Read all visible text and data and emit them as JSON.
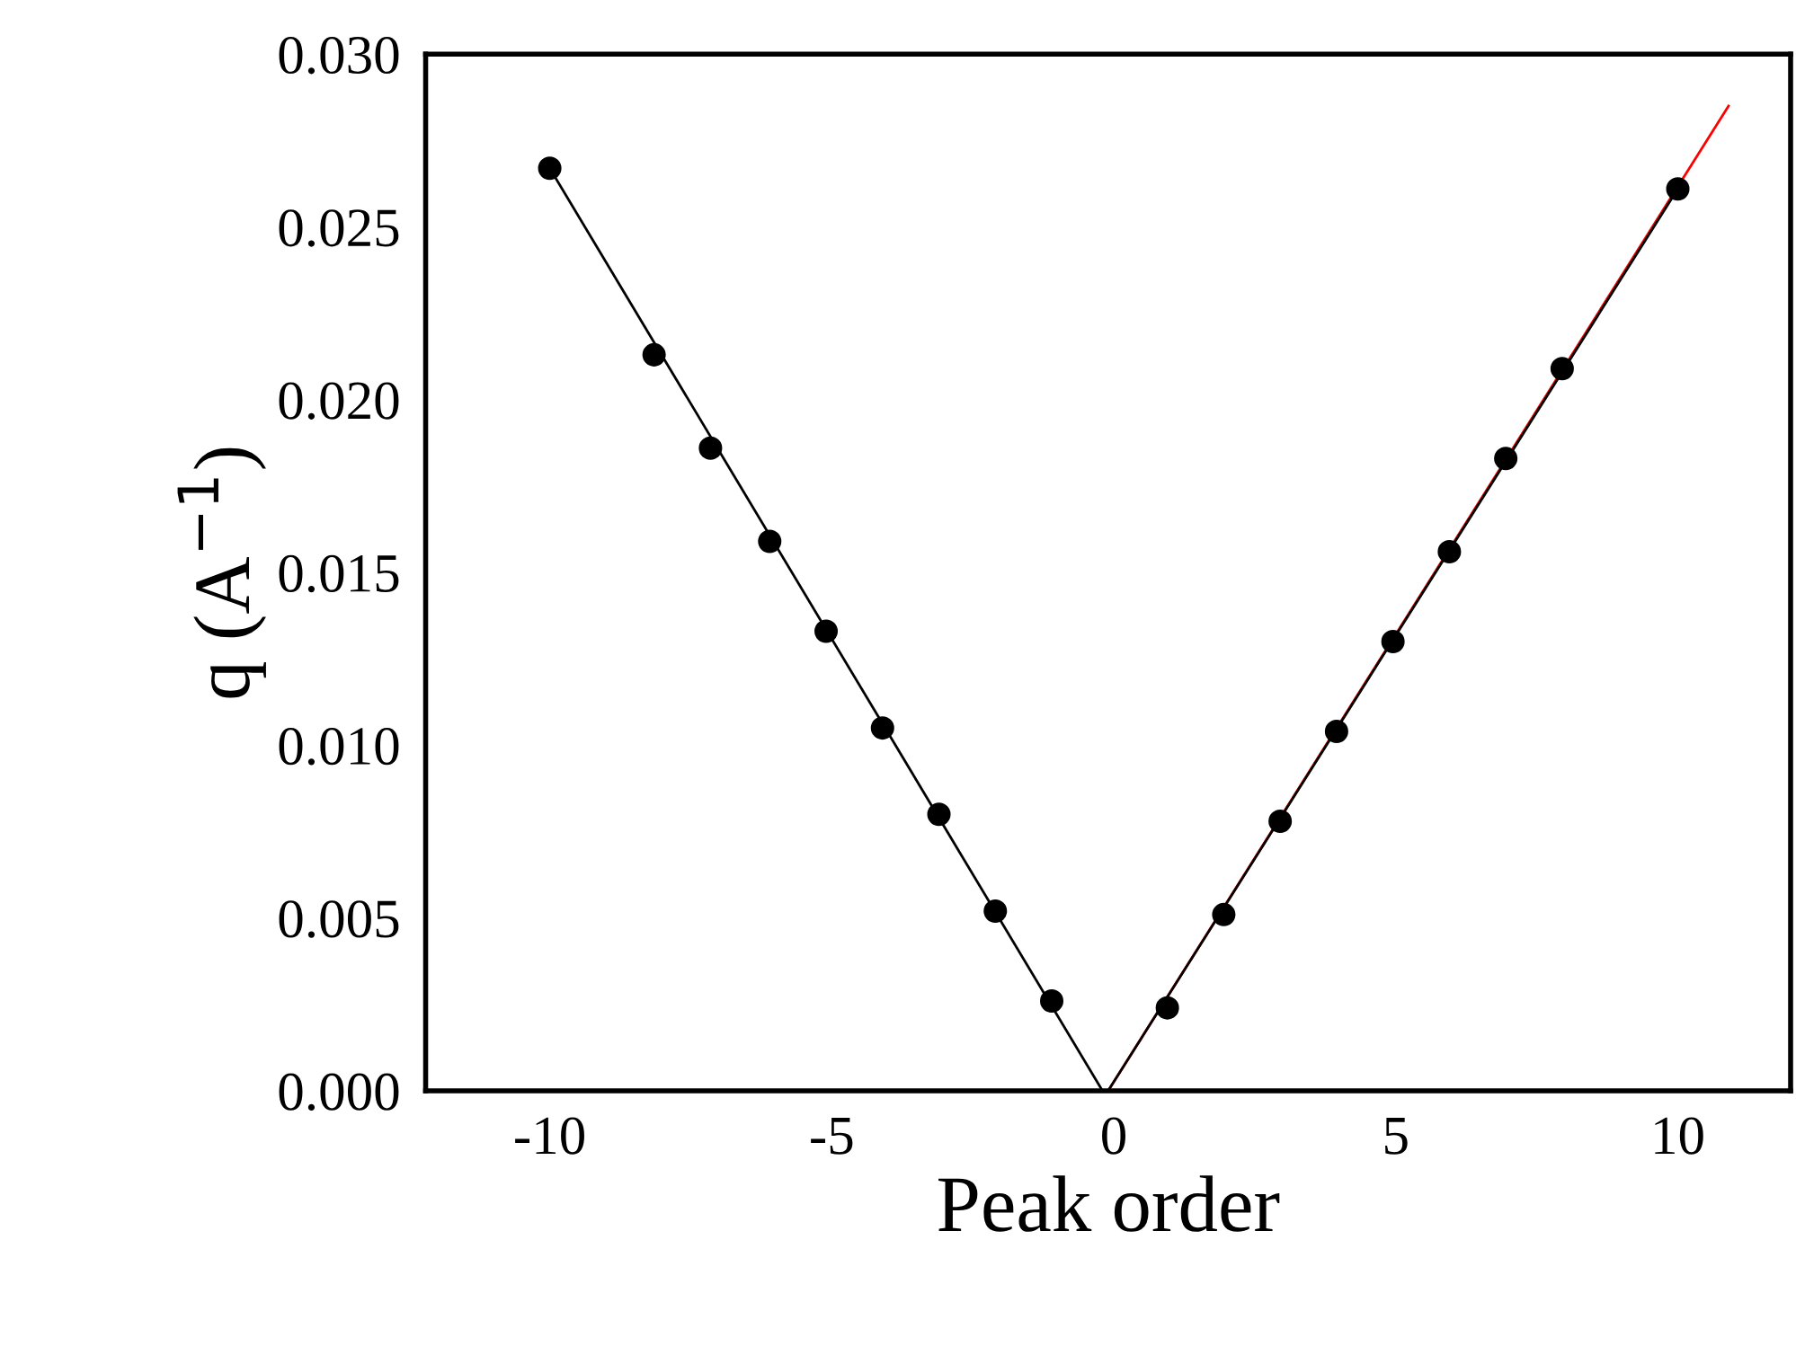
{
  "chart_data": {
    "type": "scatter",
    "xlabel": "Peak order",
    "ylabel": "q (A$^{−1}$)",
    "xlim": [
      -12.2,
      12
    ],
    "ylim": [
      0,
      0.03
    ],
    "xticks": [
      -10,
      -5,
      0,
      5,
      10
    ],
    "yticks": [
      {
        "value": 0,
        "label": "0.000"
      },
      {
        "value": 0.005,
        "label": "0.005"
      },
      {
        "value": 0.01,
        "label": "0.010"
      },
      {
        "value": 0.015,
        "label": "0.015"
      },
      {
        "value": 0.02,
        "label": "0.020"
      },
      {
        "value": 0.025,
        "label": "0.025"
      },
      {
        "value": 0.03,
        "label": "0.030"
      }
    ],
    "grid": false,
    "legend": false,
    "marker": "circle",
    "series": [
      {
        "type": "line",
        "color": "#000000",
        "x": [
          -10,
          -0.2
        ],
        "values": [
          0.0267,
          0
        ],
        "marker": "none"
      },
      {
        "type": "line",
        "color": "#ff0000",
        "x": [
          -0.1,
          10.9
        ],
        "values": [
          0,
          0.0285
        ],
        "marker": "none"
      },
      {
        "type": "line",
        "color": "#000000",
        "x": [
          -0.1,
          10
        ],
        "values": [
          0,
          0.0261
        ],
        "marker": "none"
      },
      {
        "color": "#000000",
        "x": [
          -10,
          -8.15,
          -7.15,
          -6.1,
          -5.1,
          -4.1,
          -3.1,
          -2.1,
          -1.1
        ],
        "values": [
          0.0267,
          0.0213,
          0.0186,
          0.0159,
          0.0133,
          0.0105,
          0.008,
          0.0052,
          0.0026
        ]
      },
      {
        "color": "#000000",
        "x": [
          0.95,
          1.95,
          2.95,
          3.95,
          4.95,
          5.95,
          6.95,
          7.95,
          10
        ],
        "values": [
          0.0024,
          0.0051,
          0.0078,
          0.0104,
          0.013,
          0.0156,
          0.0183,
          0.0209,
          0.0261
        ]
      }
    ]
  }
}
